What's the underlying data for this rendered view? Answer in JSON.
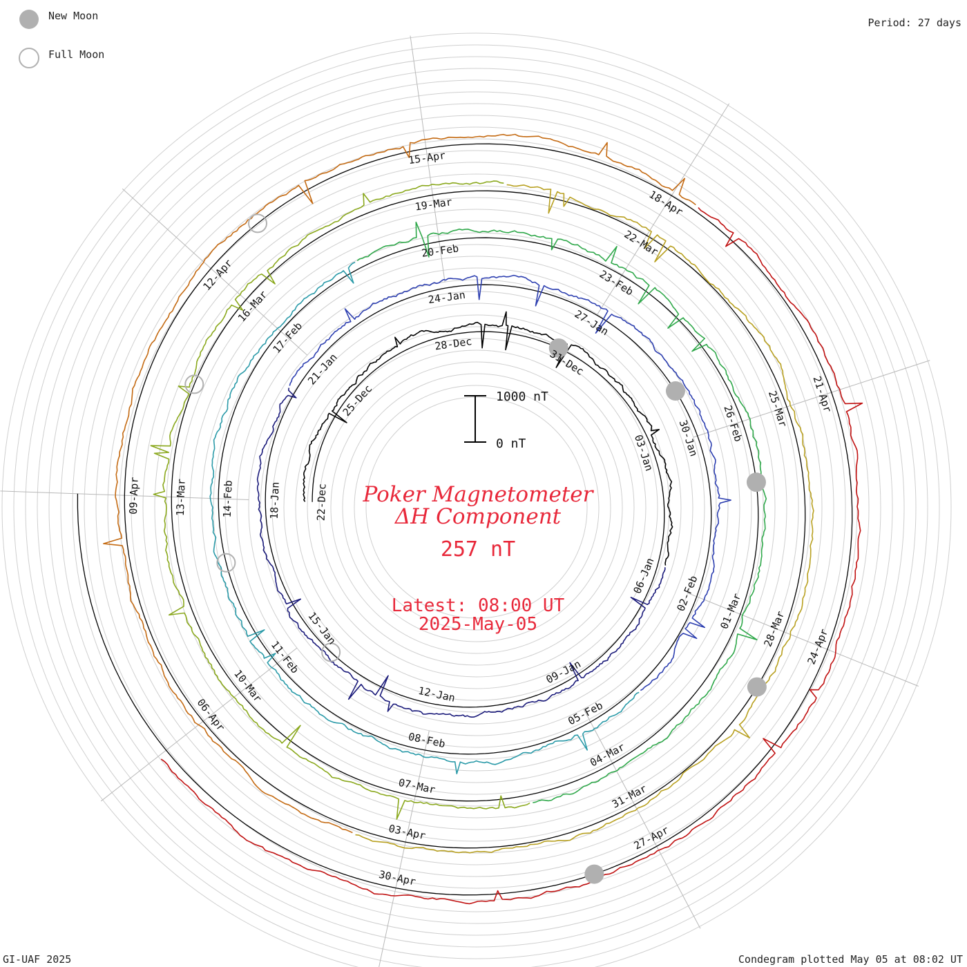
{
  "chart_data": {
    "type": "line",
    "title_line1": "Poker Magnetometer",
    "title_line2": "ΔH Component",
    "current_value": "257 nT",
    "latest_time": "Latest: 08:00 UT",
    "latest_date": "2025-May-05",
    "period": "Period: 27 days",
    "scale_top": "1000 nT",
    "scale_bottom": "0 nT",
    "legend": {
      "new_moon": "New Moon",
      "full_moon": "Full Moon"
    },
    "footer_left": "GI-UAF 2025",
    "footer_right": "Condegram plotted May 05 at 08:02 UT",
    "date_labels": [
      {
        "text": "22-Dec",
        "lap": 0,
        "frac": 0.0
      },
      {
        "text": "25-Dec",
        "lap": 0,
        "frac": 0.111
      },
      {
        "text": "28-Dec",
        "lap": 0,
        "frac": 0.222
      },
      {
        "text": "31-Dec",
        "lap": 0,
        "frac": 0.333
      },
      {
        "text": "03-Jan",
        "lap": 0,
        "frac": 0.444
      },
      {
        "text": "06-Jan",
        "lap": 0,
        "frac": 0.556
      },
      {
        "text": "09-Jan",
        "lap": 0,
        "frac": 0.667
      },
      {
        "text": "12-Jan",
        "lap": 0,
        "frac": 0.778
      },
      {
        "text": "15-Jan",
        "lap": 0,
        "frac": 0.889
      },
      {
        "text": "18-Jan",
        "lap": 1,
        "frac": 0.0
      },
      {
        "text": "21-Jan",
        "lap": 1,
        "frac": 0.111
      },
      {
        "text": "24-Jan",
        "lap": 1,
        "frac": 0.222
      },
      {
        "text": "27-Jan",
        "lap": 1,
        "frac": 0.333
      },
      {
        "text": "30-Jan",
        "lap": 1,
        "frac": 0.444
      },
      {
        "text": "02-Feb",
        "lap": 1,
        "frac": 0.556
      },
      {
        "text": "05-Feb",
        "lap": 1,
        "frac": 0.667
      },
      {
        "text": "08-Feb",
        "lap": 1,
        "frac": 0.778
      },
      {
        "text": "11-Feb",
        "lap": 1,
        "frac": 0.889
      },
      {
        "text": "14-Feb",
        "lap": 2,
        "frac": 0.0
      },
      {
        "text": "17-Feb",
        "lap": 2,
        "frac": 0.111
      },
      {
        "text": "20-Feb",
        "lap": 2,
        "frac": 0.222
      },
      {
        "text": "23-Feb",
        "lap": 2,
        "frac": 0.333
      },
      {
        "text": "26-Feb",
        "lap": 2,
        "frac": 0.444
      },
      {
        "text": "01-Mar",
        "lap": 2,
        "frac": 0.556
      },
      {
        "text": "04-Mar",
        "lap": 2,
        "frac": 0.667
      },
      {
        "text": "07-Mar",
        "lap": 2,
        "frac": 0.778
      },
      {
        "text": "10-Mar",
        "lap": 2,
        "frac": 0.889
      },
      {
        "text": "13-Mar",
        "lap": 3,
        "frac": 0.0
      },
      {
        "text": "16-Mar",
        "lap": 3,
        "frac": 0.111
      },
      {
        "text": "19-Mar",
        "lap": 3,
        "frac": 0.222
      },
      {
        "text": "22-Mar",
        "lap": 3,
        "frac": 0.333
      },
      {
        "text": "25-Mar",
        "lap": 3,
        "frac": 0.444
      },
      {
        "text": "28-Mar",
        "lap": 3,
        "frac": 0.556
      },
      {
        "text": "31-Mar",
        "lap": 3,
        "frac": 0.667
      },
      {
        "text": "03-Apr",
        "lap": 3,
        "frac": 0.778
      },
      {
        "text": "06-Apr",
        "lap": 3,
        "frac": 0.889
      },
      {
        "text": "09-Apr",
        "lap": 4,
        "frac": 0.0
      },
      {
        "text": "12-Apr",
        "lap": 4,
        "frac": 0.111
      },
      {
        "text": "15-Apr",
        "lap": 4,
        "frac": 0.222
      },
      {
        "text": "18-Apr",
        "lap": 4,
        "frac": 0.333
      },
      {
        "text": "21-Apr",
        "lap": 4,
        "frac": 0.444
      },
      {
        "text": "24-Apr",
        "lap": 4,
        "frac": 0.556
      },
      {
        "text": "27-Apr",
        "lap": 4,
        "frac": 0.667
      },
      {
        "text": "30-Apr",
        "lap": 4,
        "frac": 0.778
      }
    ],
    "new_moons": [
      {
        "lap": 0,
        "frac": 0.32
      },
      {
        "lap": 1,
        "frac": 0.41
      },
      {
        "lap": 2,
        "frac": 0.48
      },
      {
        "lap": 3,
        "frac": 0.585
      },
      {
        "lap": 4,
        "frac": 0.695
      }
    ],
    "full_moons": [
      {
        "lap": 0,
        "frac": 0.87
      },
      {
        "lap": 1,
        "frac": 0.96
      },
      {
        "lap": 3,
        "frac": 0.06
      },
      {
        "lap": 4,
        "frac": 0.14
      }
    ],
    "series_colors": [
      "#000000",
      "#1a1a7a",
      "#2d3fb0",
      "#2a9aa8",
      "#2fa84a",
      "#8aa81c",
      "#b8a020",
      "#c46a12",
      "#c01010"
    ]
  }
}
